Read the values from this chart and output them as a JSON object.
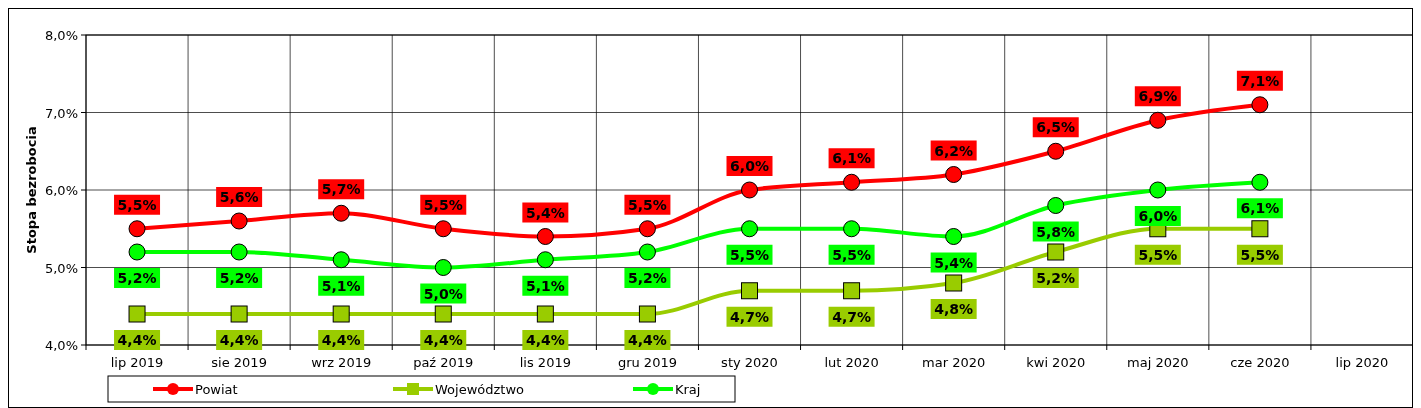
{
  "chart_data": {
    "type": "line",
    "ylabel": "Stopa bezrobocia",
    "categories": [
      "lip 2019",
      "sie 2019",
      "wrz 2019",
      "paź 2019",
      "lis 2019",
      "gru 2019",
      "sty 2020",
      "lut 2020",
      "mar 2020",
      "kwi 2020",
      "maj 2020",
      "cze 2020",
      "lip 2020"
    ],
    "series": [
      {
        "name": "Powiat",
        "color": "#ff0000",
        "marker": "circle",
        "values": [
          5.5,
          5.6,
          5.7,
          5.5,
          5.4,
          5.5,
          6.0,
          6.1,
          6.2,
          6.5,
          6.9,
          7.1,
          null
        ],
        "value_labels": [
          "5,5%",
          "5,6%",
          "5,7%",
          "5,5%",
          "5,4%",
          "5,5%",
          "6,0%",
          "6,1%",
          "6,2%",
          "6,5%",
          "6,9%",
          "7,1%",
          null
        ]
      },
      {
        "name": "Województwo",
        "color": "#99cc00",
        "marker": "square",
        "values": [
          4.4,
          4.4,
          4.4,
          4.4,
          4.4,
          4.4,
          4.7,
          4.7,
          4.8,
          5.2,
          5.5,
          5.5,
          null
        ],
        "value_labels": [
          "4,4%",
          "4,4%",
          "4,4%",
          "4,4%",
          "4,4%",
          "4,4%",
          "4,7%",
          "4,7%",
          "4,8%",
          "5,2%",
          "5,5%",
          "5,5%",
          null
        ]
      },
      {
        "name": "Kraj",
        "color": "#00ff00",
        "marker": "circle",
        "values": [
          5.2,
          5.2,
          5.1,
          5.0,
          5.1,
          5.2,
          5.5,
          5.5,
          5.4,
          5.8,
          6.0,
          6.1,
          null
        ],
        "value_labels": [
          "5,2%",
          "5,2%",
          "5,1%",
          "5,0%",
          "5,1%",
          "5,2%",
          "5,5%",
          "5,5%",
          "5,4%",
          "5,8%",
          "6,0%",
          "6,1%",
          null
        ]
      }
    ],
    "ylim": [
      4,
      8
    ],
    "yticks": [
      {
        "value": 4,
        "label": "4,0%"
      },
      {
        "value": 5,
        "label": "5,0%"
      },
      {
        "value": 6,
        "label": "6,0%"
      },
      {
        "value": 7,
        "label": "7,0%"
      },
      {
        "value": 8,
        "label": "8,0%"
      }
    ],
    "grid": true,
    "legend": "bottom"
  }
}
